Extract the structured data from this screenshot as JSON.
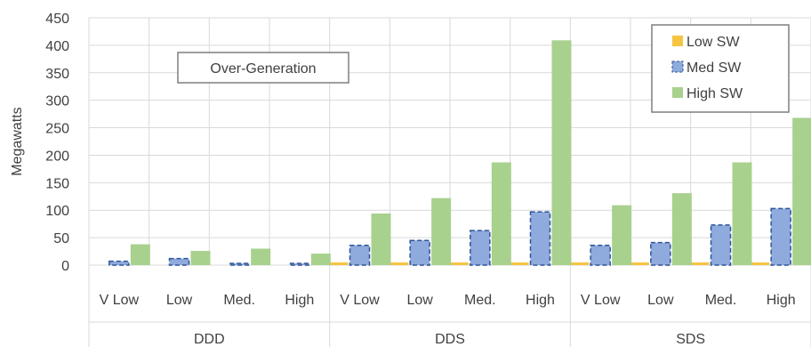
{
  "chart_data": {
    "type": "bar",
    "ylabel": "Megawatts",
    "ylim": [
      0,
      450
    ],
    "yticks": [
      0,
      50,
      100,
      150,
      200,
      250,
      300,
      350,
      400,
      450
    ],
    "grid": true,
    "legend_position": "top-right",
    "annotation": "Over-Generation",
    "groups": [
      {
        "name": "DDD",
        "categories": [
          "V Low",
          "Low",
          "Med.",
          "High"
        ]
      },
      {
        "name": "DDS",
        "categories": [
          "V Low",
          "Low",
          "Med.",
          "High"
        ]
      },
      {
        "name": "SDS",
        "categories": [
          "V Low",
          "Low",
          "Med.",
          "High"
        ]
      }
    ],
    "series": [
      {
        "name": "Low SW",
        "color": "#f5c542",
        "values": [
          0,
          0,
          0,
          0,
          5,
          5,
          5,
          5,
          5,
          5,
          5,
          5
        ]
      },
      {
        "name": "Med SW",
        "color": "#8faadc",
        "values": [
          7,
          12,
          3,
          3,
          36,
          45,
          63,
          97,
          36,
          41,
          73,
          103
        ]
      },
      {
        "name": "High SW",
        "color": "#a9d18e",
        "values": [
          38,
          26,
          30,
          21,
          94,
          122,
          187,
          409,
          109,
          131,
          187,
          268
        ]
      }
    ]
  }
}
